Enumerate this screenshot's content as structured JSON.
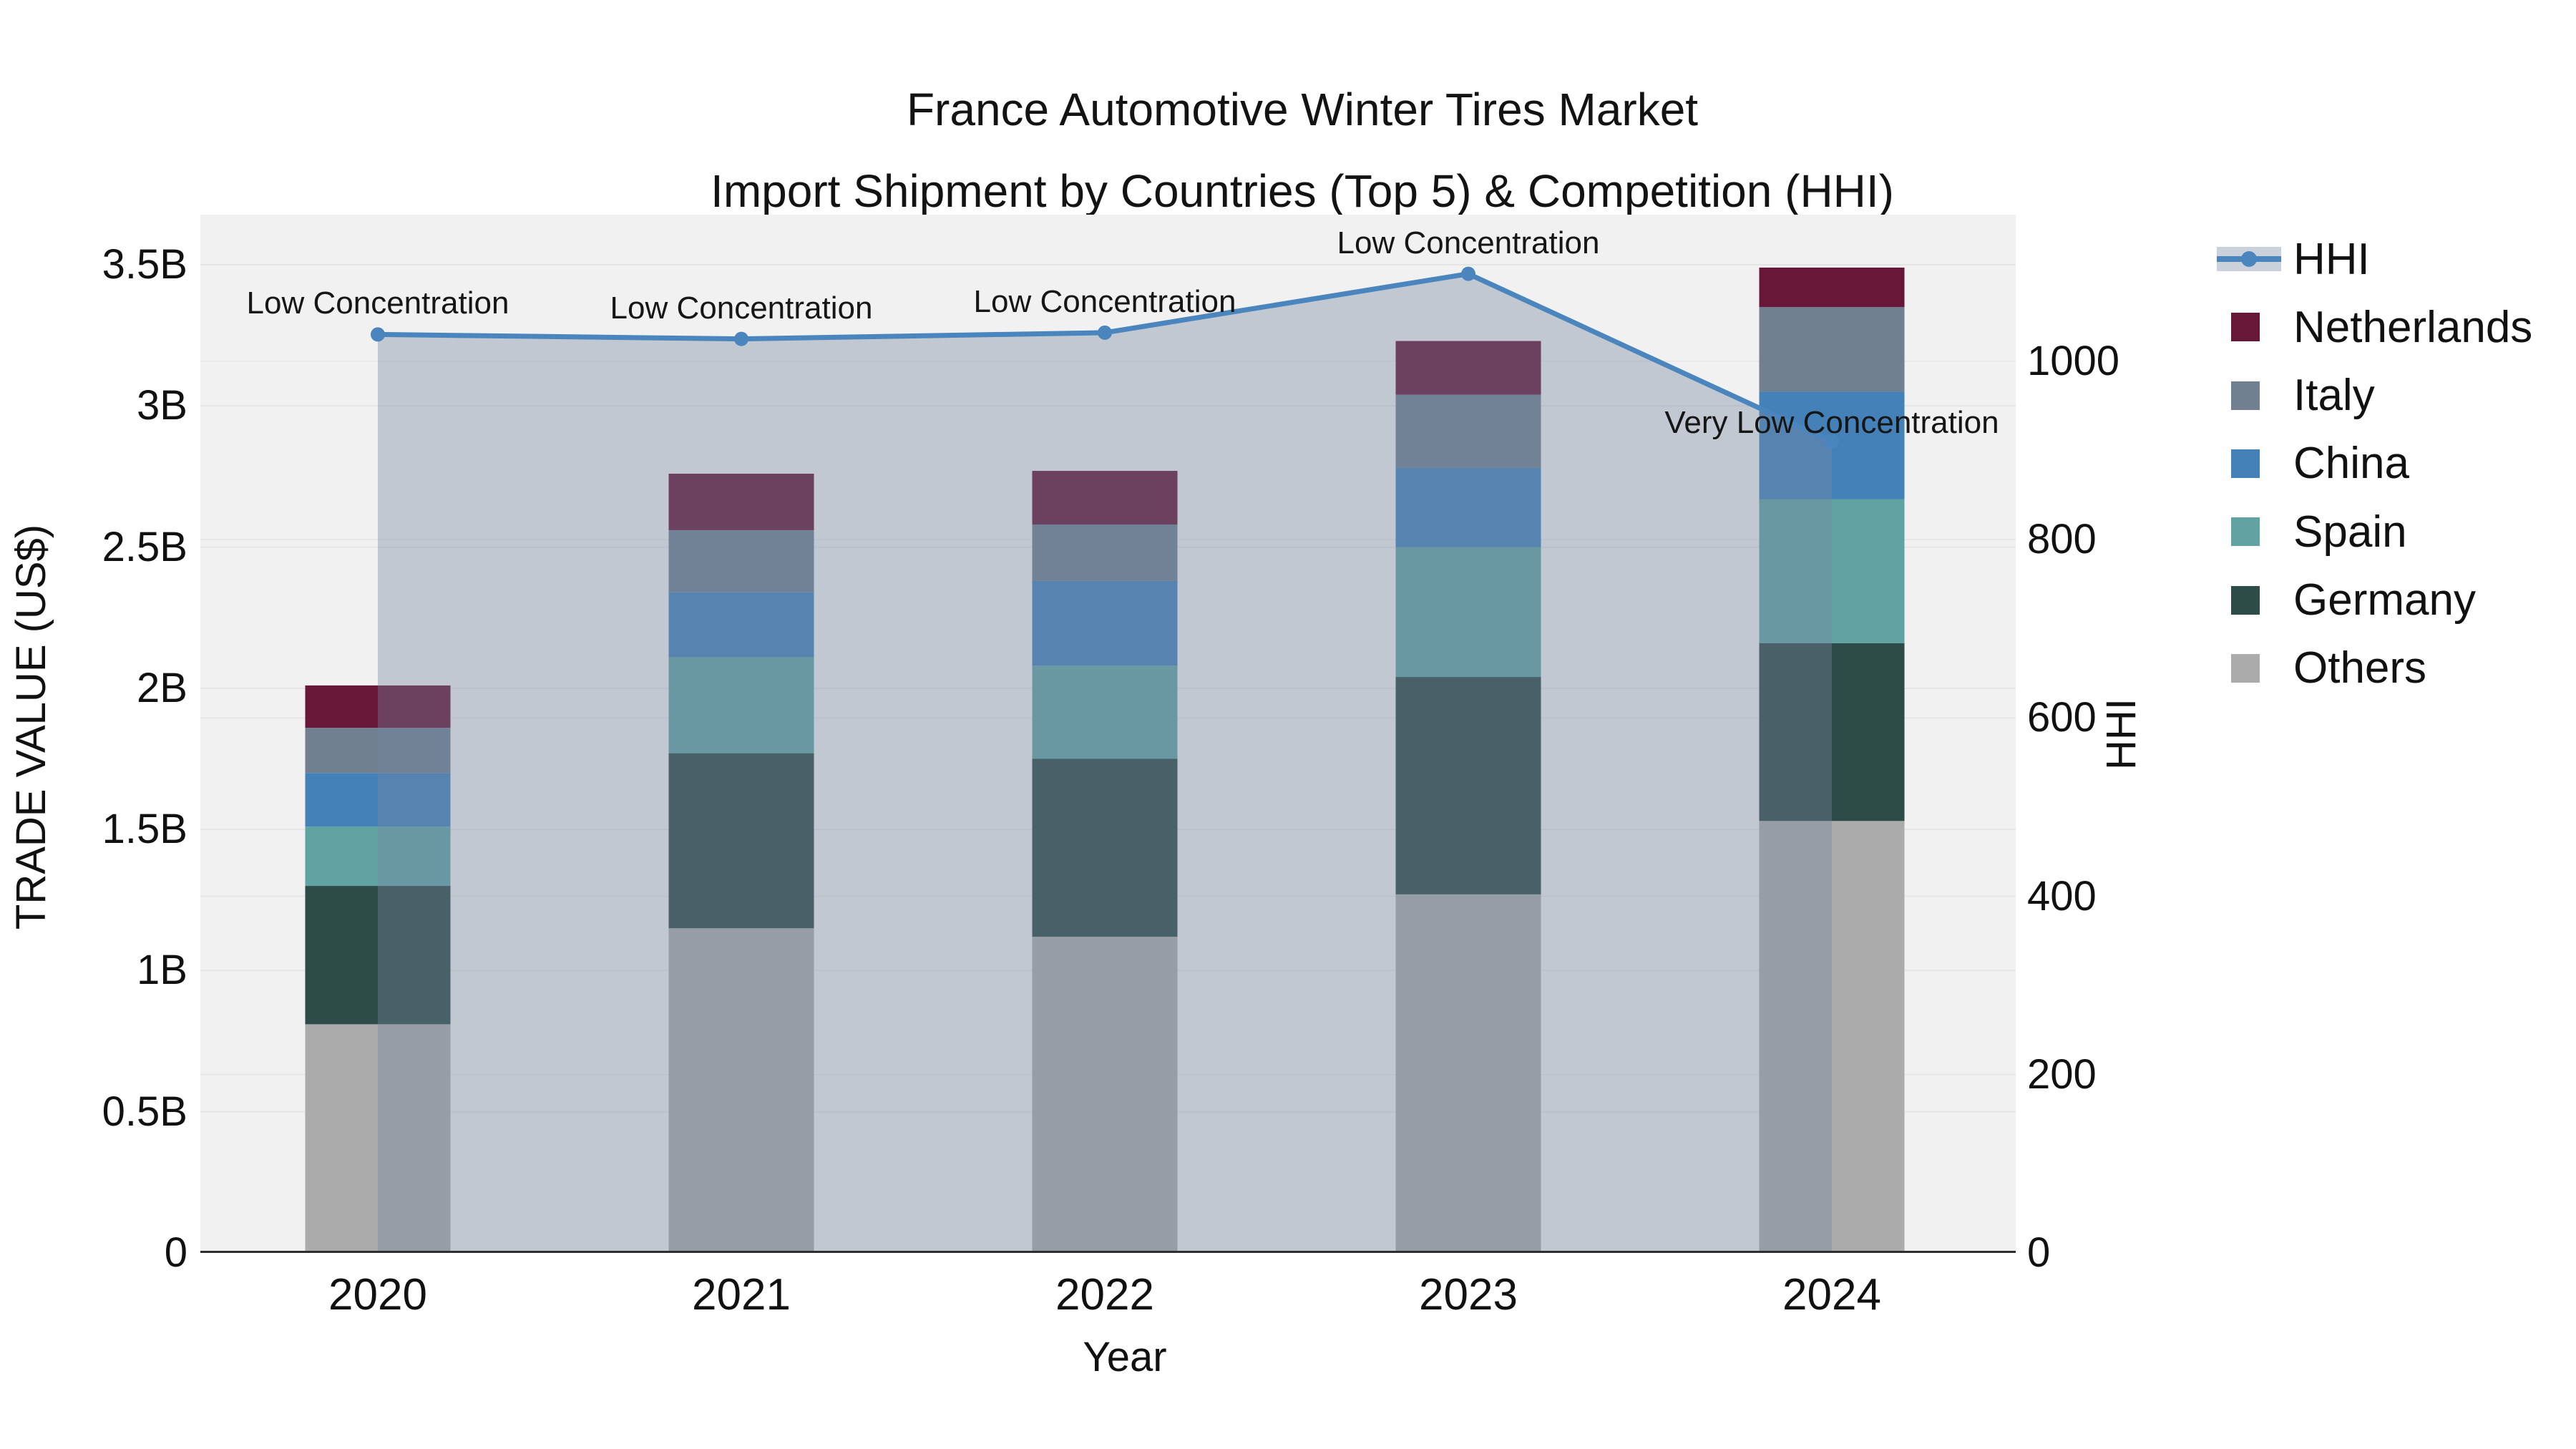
{
  "title": {
    "line1": "France Automotive Winter Tires Market",
    "line2": "Import Shipment by Countries (Top 5) & Competition (HHI)"
  },
  "axes": {
    "x": {
      "label": "Year",
      "ticks": [
        "2020",
        "2021",
        "2022",
        "2023",
        "2024"
      ]
    },
    "y_left": {
      "label": "TRADE VALUE (US$)",
      "tick_labels": [
        "0",
        "0.5B",
        "1B",
        "1.5B",
        "2B",
        "2.5B",
        "3B",
        "3.5B"
      ],
      "tick_values": [
        0,
        0.5,
        1,
        1.5,
        2,
        2.5,
        3,
        3.5
      ],
      "unit": "billion US$"
    },
    "y_right": {
      "label": "HHI",
      "tick_labels": [
        "0",
        "200",
        "400",
        "600",
        "800",
        "1000"
      ],
      "tick_values": [
        0,
        200,
        400,
        600,
        800,
        1000
      ]
    }
  },
  "legend": {
    "items": [
      {
        "label": "HHI",
        "type": "line",
        "color": "#4a86bd"
      },
      {
        "label": "Netherlands",
        "type": "swatch",
        "color": "#671839"
      },
      {
        "label": "Italy",
        "type": "swatch",
        "color": "#708090"
      },
      {
        "label": "China",
        "type": "swatch",
        "color": "#4381b8"
      },
      {
        "label": "Spain",
        "type": "swatch",
        "color": "#61a3a3"
      },
      {
        "label": "Germany",
        "type": "swatch",
        "color": "#2d4b47"
      },
      {
        "label": "Others",
        "type": "swatch",
        "color": "#acabab"
      }
    ]
  },
  "chart_data": {
    "type": [
      "stacked-bar",
      "line-area"
    ],
    "categories": [
      "2020",
      "2021",
      "2022",
      "2023",
      "2024"
    ],
    "bar_unit": "billion US$ (left axis, values estimated from gridlines)",
    "bar_series": [
      {
        "name": "Others",
        "color": "#acabab",
        "values": [
          0.81,
          1.15,
          1.12,
          1.27,
          1.53
        ]
      },
      {
        "name": "Germany",
        "color": "#2d4b47",
        "values": [
          0.49,
          0.62,
          0.63,
          0.77,
          0.63
        ]
      },
      {
        "name": "Spain",
        "color": "#61a3a3",
        "values": [
          0.21,
          0.34,
          0.33,
          0.46,
          0.51
        ]
      },
      {
        "name": "China",
        "color": "#4381b8",
        "values": [
          0.19,
          0.23,
          0.3,
          0.28,
          0.38
        ]
      },
      {
        "name": "Italy",
        "color": "#708090",
        "values": [
          0.16,
          0.22,
          0.2,
          0.26,
          0.3
        ]
      },
      {
        "name": "Netherlands",
        "color": "#671839",
        "values": [
          0.15,
          0.2,
          0.19,
          0.19,
          0.14
        ]
      }
    ],
    "bar_totals": [
      2.01,
      2.76,
      2.77,
      3.23,
      3.49
    ],
    "line_series": {
      "name": "HHI",
      "axis": "right",
      "color": "#4a86bd",
      "area_fill": "rgba(118,133,160,0.38)",
      "values": [
        1030,
        1025,
        1032,
        1098,
        910
      ]
    },
    "annotations": [
      {
        "category": "2020",
        "text": "Low Concentration"
      },
      {
        "category": "2021",
        "text": "Low Concentration"
      },
      {
        "category": "2022",
        "text": "Low Concentration"
      },
      {
        "category": "2023",
        "text": "Low Concentration"
      },
      {
        "category": "2024",
        "text": "Very Low Concentration"
      }
    ],
    "y_left_range": [
      0,
      3.68
    ],
    "y_right_range": [
      0,
      1164
    ],
    "grid": true,
    "legend_position": "right"
  }
}
